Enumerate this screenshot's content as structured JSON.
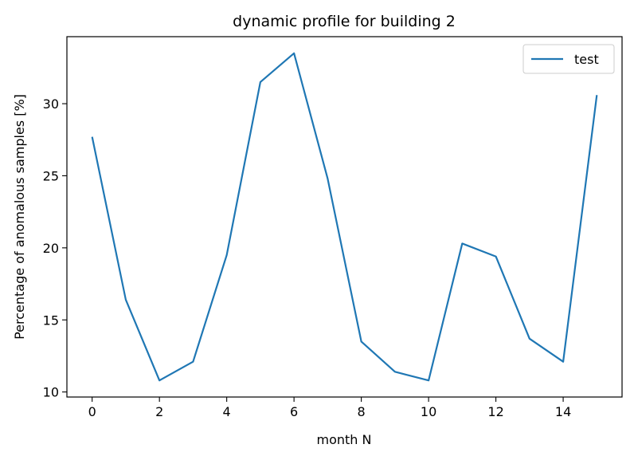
{
  "chart_data": {
    "type": "line",
    "title": "dynamic profile for building 2",
    "xlabel": "month N",
    "ylabel": "Percentage of anomalous samples [%]",
    "x": [
      0,
      1,
      2,
      3,
      4,
      5,
      6,
      7,
      8,
      9,
      10,
      11,
      12,
      13,
      14,
      15
    ],
    "series": [
      {
        "name": "test",
        "color": "#1f77b4",
        "values": [
          27.7,
          16.4,
          10.8,
          12.1,
          19.5,
          31.5,
          33.5,
          24.8,
          13.5,
          11.4,
          10.8,
          20.3,
          19.4,
          13.7,
          12.1,
          30.6
        ]
      }
    ],
    "xlim": [
      -0.75,
      15.75
    ],
    "ylim": [
      9.65,
      34.65
    ],
    "xticks": [
      0,
      2,
      4,
      6,
      8,
      10,
      12,
      14
    ],
    "yticks": [
      10,
      15,
      20,
      25,
      30
    ],
    "grid": false,
    "legend_position": "top-right"
  }
}
